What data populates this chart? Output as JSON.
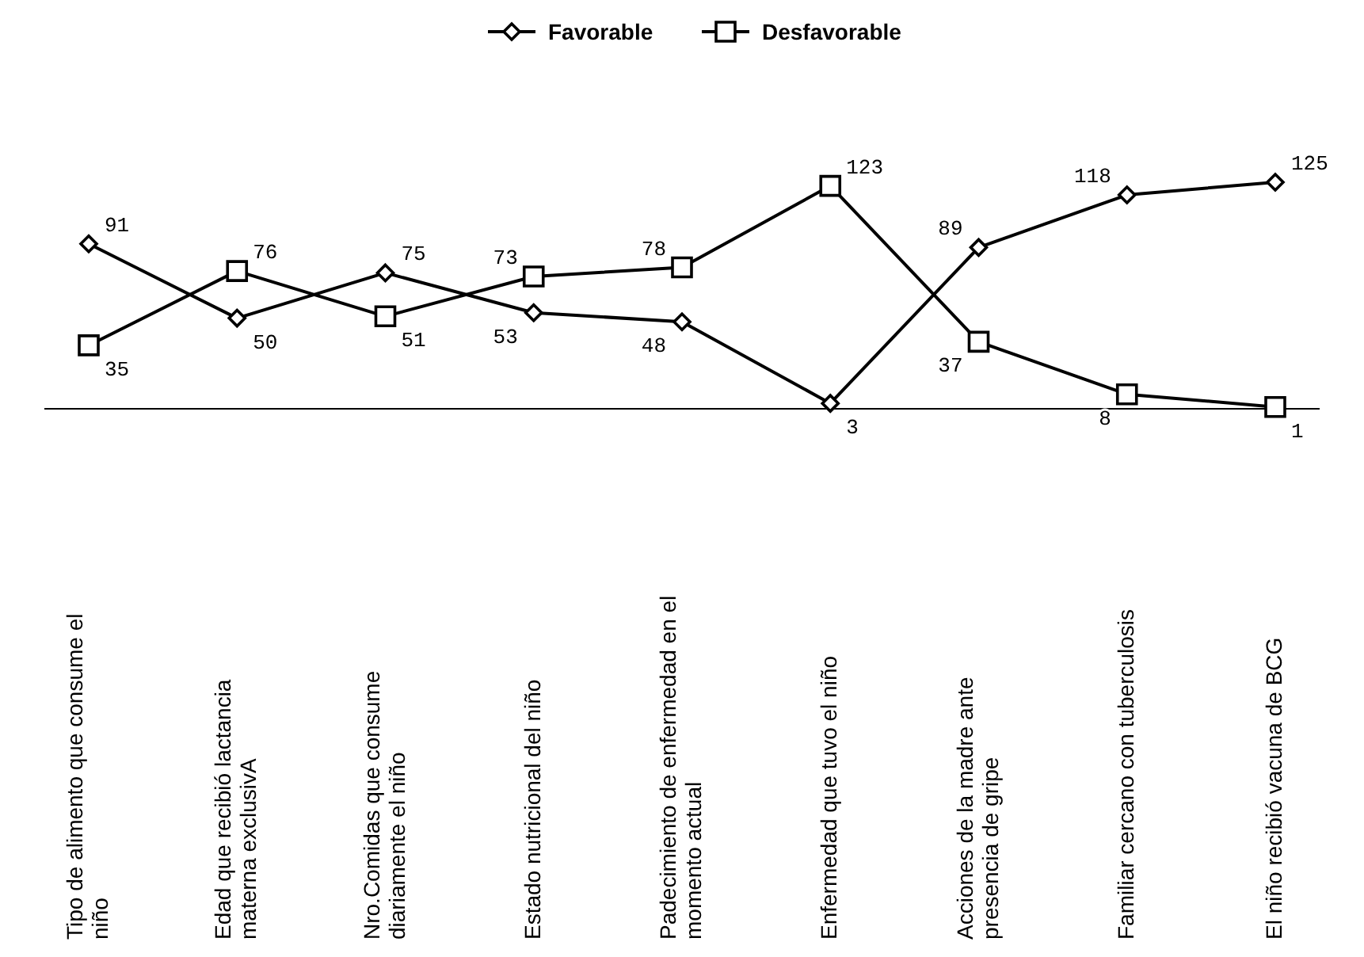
{
  "chart_data": {
    "type": "line",
    "categories": [
      "Tipo de alimento que consume el niño",
      "Edad que recibió lactancia materna exclusivA",
      "Nro.Comidas que consume diariamente el niño",
      "Estado nutricional del niño",
      "Padecimiento de enfermedad en el momento actual",
      "Enfermedad que tuvo el niño",
      "Acciones de la madre ante presencia de gripe",
      "Familiar cercano con tuberculosis",
      "El niño recibió vacuna de BCG"
    ],
    "series": [
      {
        "name": "Favorable",
        "color": "#000000",
        "marker": "diamond",
        "values": [
          91,
          50,
          75,
          53,
          48,
          3,
          89,
          118,
          125
        ]
      },
      {
        "name": "Desfavorable",
        "color": "#000000",
        "marker": "square",
        "values": [
          35,
          76,
          51,
          73,
          78,
          123,
          37,
          8,
          1
        ]
      }
    ],
    "data_labels": true,
    "legend": "top",
    "line_style": "solid"
  }
}
